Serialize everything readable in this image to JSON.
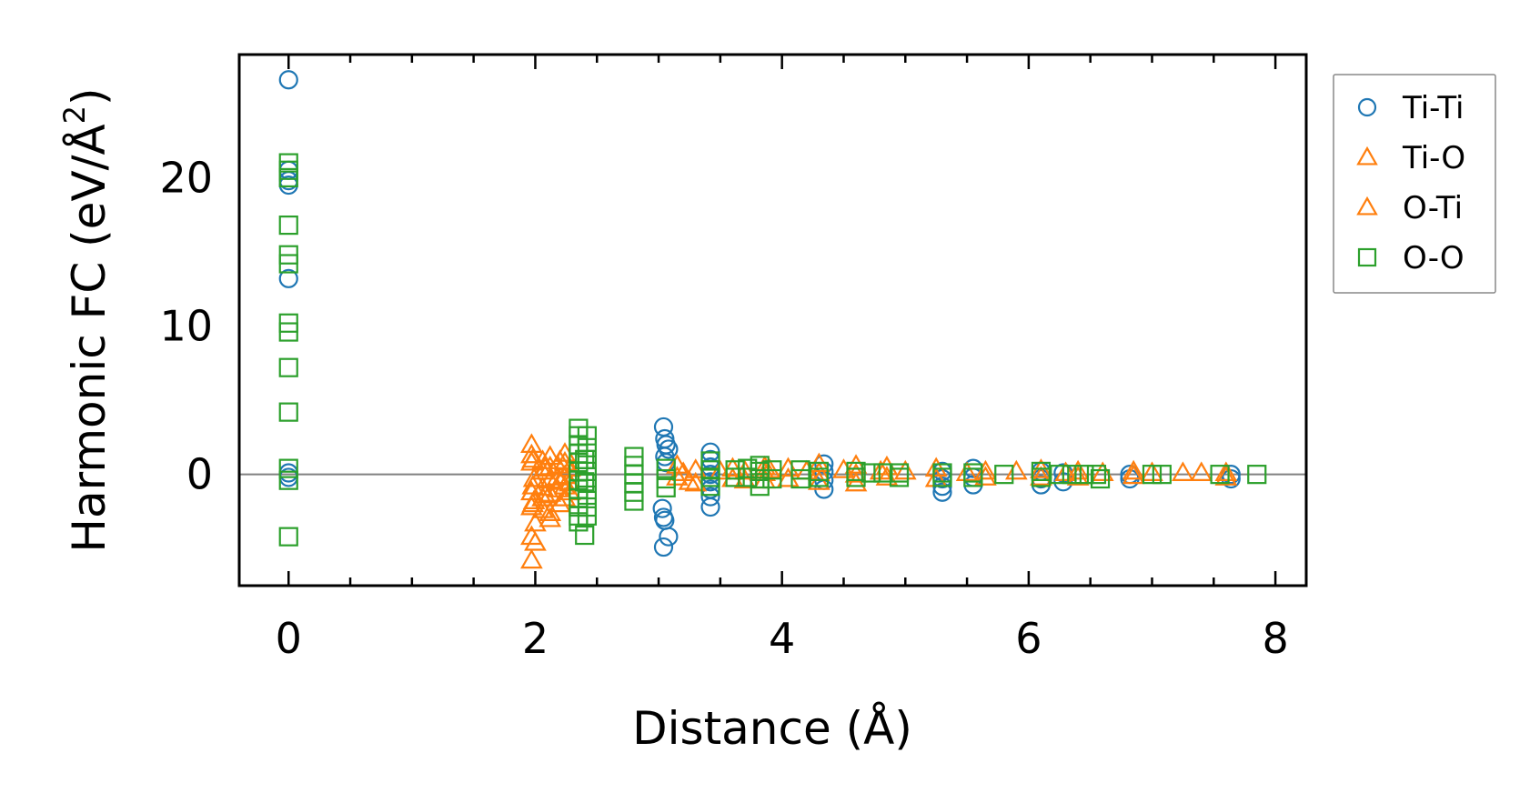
{
  "chart_data": {
    "type": "scatter",
    "title": "",
    "xlabel": "Distance (Å)",
    "ylabel_main": "Harmonic FC (eV/Å",
    "ylabel_sup": "2",
    "ylabel_close": ")",
    "xlim": [
      -0.4,
      8.25
    ],
    "ylim": [
      -7.5,
      28.3
    ],
    "xticks": [
      0,
      2,
      4,
      6,
      8
    ],
    "xtick_labels": [
      "0",
      "2",
      "4",
      "6",
      "8"
    ],
    "yticks": [
      0,
      10,
      20
    ],
    "ytick_labels": [
      "0",
      "10",
      "20"
    ],
    "zero_line": true,
    "grid": false,
    "legend_position": "outside-right",
    "series": [
      {
        "name": "Ti-Ti",
        "marker": "circle",
        "color": "#1f77b4",
        "points": [
          [
            0,
            26.6
          ],
          [
            0,
            20.5
          ],
          [
            0,
            19.8
          ],
          [
            0,
            19.5
          ],
          [
            0,
            13.2
          ],
          [
            0,
            0.1
          ],
          [
            0,
            -0.2
          ],
          [
            3.04,
            3.2
          ],
          [
            3.05,
            2.4
          ],
          [
            3.06,
            2.0
          ],
          [
            3.08,
            1.7
          ],
          [
            3.05,
            1.2
          ],
          [
            3.06,
            0.8
          ],
          [
            3.03,
            -2.3
          ],
          [
            3.04,
            -2.9
          ],
          [
            3.05,
            -3.1
          ],
          [
            3.08,
            -4.2
          ],
          [
            3.04,
            -4.9
          ],
          [
            3.42,
            1.5
          ],
          [
            3.42,
            1.0
          ],
          [
            3.42,
            0.5
          ],
          [
            3.42,
            0.0
          ],
          [
            3.42,
            -0.5
          ],
          [
            3.42,
            -1.0
          ],
          [
            3.42,
            -1.5
          ],
          [
            3.42,
            -2.2
          ],
          [
            4.34,
            0.7
          ],
          [
            4.34,
            0.2
          ],
          [
            4.34,
            -0.4
          ],
          [
            4.34,
            -1.0
          ],
          [
            5.3,
            0.2
          ],
          [
            5.3,
            -0.3
          ],
          [
            5.3,
            -0.8
          ],
          [
            5.3,
            -1.2
          ],
          [
            5.55,
            0.4
          ],
          [
            5.55,
            -0.2
          ],
          [
            5.55,
            -0.7
          ],
          [
            6.1,
            0.2
          ],
          [
            6.1,
            -0.3
          ],
          [
            6.1,
            -0.7
          ],
          [
            6.28,
            0.1
          ],
          [
            6.28,
            -0.5
          ],
          [
            6.82,
            0.0
          ],
          [
            6.82,
            -0.3
          ],
          [
            7.64,
            0.0
          ],
          [
            7.64,
            -0.3
          ]
        ]
      },
      {
        "name": "Ti-O",
        "marker": "triangle",
        "color": "#ff7f0e",
        "points": [
          [
            1.97,
            2.0
          ],
          [
            1.97,
            1.3
          ],
          [
            1.97,
            0.8
          ],
          [
            1.97,
            -1.2
          ],
          [
            1.97,
            -2.2
          ],
          [
            1.97,
            -4.2
          ],
          [
            1.97,
            -5.8
          ],
          [
            1.99,
            -0.3
          ],
          [
            1.99,
            -1.8
          ],
          [
            2.0,
            -3.3
          ],
          [
            2.0,
            -4.6
          ],
          [
            2.06,
            0.9
          ],
          [
            2.06,
            0.2
          ],
          [
            2.06,
            -0.9
          ],
          [
            2.06,
            -1.6
          ],
          [
            2.06,
            -2.4
          ],
          [
            2.12,
            1.2
          ],
          [
            2.12,
            0.5
          ],
          [
            2.12,
            -0.4
          ],
          [
            2.12,
            -1.3
          ],
          [
            2.12,
            -2.6
          ],
          [
            2.12,
            -3.0
          ],
          [
            2.18,
            0.6
          ],
          [
            2.18,
            -0.2
          ],
          [
            2.18,
            -1.0
          ],
          [
            2.24,
            1.4
          ],
          [
            2.24,
            0.8
          ],
          [
            2.24,
            -0.1
          ],
          [
            2.24,
            -0.8
          ],
          [
            2.24,
            -1.6
          ],
          [
            2.28,
            0.4
          ],
          [
            2.28,
            -0.6
          ],
          [
            2.28,
            -1.2
          ],
          [
            3.15,
            0.6
          ],
          [
            3.15,
            -0.2
          ],
          [
            3.25,
            -0.5
          ],
          [
            3.3,
            0.3
          ],
          [
            3.3,
            -0.6
          ],
          [
            3.6,
            0.4
          ],
          [
            3.6,
            -0.3
          ],
          [
            3.7,
            0.2
          ],
          [
            3.7,
            -0.4
          ],
          [
            3.86,
            0.5
          ],
          [
            3.86,
            0.1
          ],
          [
            3.86,
            -0.4
          ],
          [
            4.05,
            0.4
          ],
          [
            4.05,
            -0.3
          ],
          [
            4.3,
            0.7
          ],
          [
            4.3,
            0.1
          ],
          [
            4.3,
            -0.5
          ],
          [
            4.6,
            0.6
          ],
          [
            4.6,
            0.0
          ],
          [
            4.6,
            -0.6
          ],
          [
            4.85,
            0.5
          ],
          [
            4.85,
            -0.2
          ],
          [
            5.25,
            0.4
          ],
          [
            5.25,
            -0.3
          ],
          [
            5.65,
            0.2
          ],
          [
            5.65,
            -0.2
          ],
          [
            6.1,
            0.3
          ],
          [
            6.1,
            -0.2
          ],
          [
            6.4,
            0.2
          ],
          [
            6.4,
            -0.2
          ],
          [
            6.85,
            0.2
          ],
          [
            6.85,
            -0.1
          ],
          [
            7.25,
            0.1
          ],
          [
            7.6,
            0.1
          ],
          [
            7.6,
            -0.2
          ]
        ]
      },
      {
        "name": "O-Ti",
        "marker": "triangle",
        "color": "#ff7f0e",
        "points": [
          [
            1.98,
            1.0
          ],
          [
            1.98,
            -0.8
          ],
          [
            1.98,
            -2.0
          ],
          [
            2.08,
            0.4
          ],
          [
            2.08,
            -1.4
          ],
          [
            2.2,
            0.9
          ],
          [
            2.2,
            -0.5
          ],
          [
            2.2,
            -2.0
          ],
          [
            3.2,
            0.1
          ],
          [
            3.5,
            0.2
          ],
          [
            3.9,
            0.3
          ],
          [
            4.2,
            0.2
          ],
          [
            4.5,
            0.3
          ],
          [
            4.8,
            0.2
          ],
          [
            5.0,
            0.2
          ],
          [
            5.5,
            0.1
          ],
          [
            5.9,
            0.2
          ],
          [
            6.3,
            0.1
          ],
          [
            6.6,
            0.1
          ],
          [
            7.0,
            0.1
          ],
          [
            7.4,
            0.1
          ]
        ]
      },
      {
        "name": "O-O",
        "marker": "square",
        "color": "#2ca02c",
        "points": [
          [
            0,
            21.0
          ],
          [
            0,
            20.5
          ],
          [
            0,
            20.0
          ],
          [
            0,
            16.8
          ],
          [
            0,
            14.8
          ],
          [
            0,
            14.2
          ],
          [
            0,
            10.2
          ],
          [
            0,
            9.6
          ],
          [
            0,
            7.2
          ],
          [
            0,
            4.2
          ],
          [
            0,
            0.4
          ],
          [
            0,
            -0.4
          ],
          [
            0,
            -4.2
          ],
          [
            2.35,
            3.1
          ],
          [
            2.35,
            2.6
          ],
          [
            2.35,
            2.0
          ],
          [
            2.35,
            1.4
          ],
          [
            2.35,
            0.8
          ],
          [
            2.35,
            0.2
          ],
          [
            2.35,
            -0.4
          ],
          [
            2.35,
            -1.0
          ],
          [
            2.35,
            -1.6
          ],
          [
            2.35,
            -2.2
          ],
          [
            2.35,
            -2.8
          ],
          [
            2.35,
            -3.2
          ],
          [
            2.4,
            1.0
          ],
          [
            2.4,
            -0.5
          ],
          [
            2.4,
            -4.1
          ],
          [
            2.42,
            2.6
          ],
          [
            2.42,
            1.8
          ],
          [
            2.42,
            1.0
          ],
          [
            2.42,
            0.2
          ],
          [
            2.42,
            -0.6
          ],
          [
            2.42,
            -1.4
          ],
          [
            2.42,
            -2.2
          ],
          [
            2.42,
            -2.8
          ],
          [
            2.8,
            1.2
          ],
          [
            2.8,
            0.6
          ],
          [
            2.8,
            0.0
          ],
          [
            2.8,
            -0.6
          ],
          [
            2.8,
            -1.2
          ],
          [
            2.8,
            -1.8
          ],
          [
            3.06,
            0.4
          ],
          [
            3.06,
            -0.3
          ],
          [
            3.06,
            -0.9
          ],
          [
            3.42,
            0.9
          ],
          [
            3.42,
            0.3
          ],
          [
            3.42,
            -0.2
          ],
          [
            3.42,
            -0.8
          ],
          [
            3.62,
            0.3
          ],
          [
            3.62,
            -0.2
          ],
          [
            3.72,
            0.4
          ],
          [
            3.72,
            -0.2
          ],
          [
            3.82,
            0.6
          ],
          [
            3.82,
            0.2
          ],
          [
            3.82,
            -0.3
          ],
          [
            3.82,
            -0.8
          ],
          [
            3.92,
            0.3
          ],
          [
            3.92,
            -0.3
          ],
          [
            4.15,
            0.3
          ],
          [
            4.15,
            -0.3
          ],
          [
            4.3,
            0.2
          ],
          [
            4.3,
            -0.2
          ],
          [
            4.6,
            0.2
          ],
          [
            4.6,
            -0.2
          ],
          [
            4.72,
            0.1
          ],
          [
            4.82,
            0.1
          ],
          [
            4.95,
            0.1
          ],
          [
            4.95,
            -0.2
          ],
          [
            5.3,
            0.1
          ],
          [
            5.3,
            -0.2
          ],
          [
            5.55,
            0.1
          ],
          [
            5.55,
            -0.2
          ],
          [
            5.8,
            0.0
          ],
          [
            6.1,
            0.2
          ],
          [
            6.1,
            -0.2
          ],
          [
            6.25,
            0.0
          ],
          [
            6.35,
            0.0
          ],
          [
            6.45,
            0.0
          ],
          [
            6.55,
            0.0
          ],
          [
            6.58,
            -0.3
          ],
          [
            7.0,
            0.0
          ],
          [
            7.08,
            0.0
          ],
          [
            7.55,
            0.0
          ],
          [
            7.85,
            0.0
          ]
        ]
      }
    ]
  }
}
